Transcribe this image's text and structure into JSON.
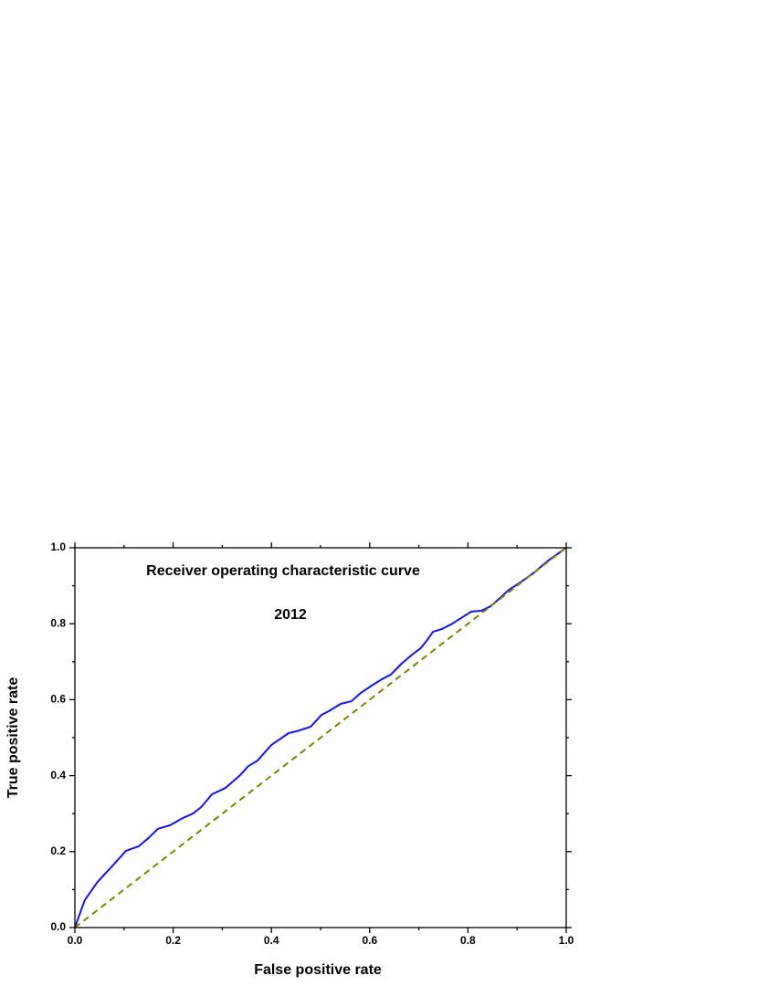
{
  "chart_data": {
    "type": "line",
    "title": "Receiver operating characteristic curve",
    "subtitle": "2012",
    "x_label": "False positive rate",
    "y_label": "True positive rate",
    "xlim": [
      0,
      1
    ],
    "ylim": [
      0,
      1
    ],
    "xticks": [
      {
        "value": 0,
        "label": "0.0"
      },
      {
        "value": 0.2,
        "label": "0.2"
      },
      {
        "value": 0.4,
        "label": "0.4"
      },
      {
        "value": 0.6,
        "label": "0.6"
      },
      {
        "value": 0.8,
        "label": "0.8"
      },
      {
        "value": 1,
        "label": "1.0"
      }
    ],
    "yticks": [
      {
        "value": 0,
        "label": "0.0"
      },
      {
        "value": 0.2,
        "label": "0.2"
      },
      {
        "value": 0.4,
        "label": "0.4"
      },
      {
        "value": 0.6,
        "label": "0.6"
      },
      {
        "value": 0.8,
        "label": "0.8"
      },
      {
        "value": 1,
        "label": "1.0"
      }
    ],
    "grid": false,
    "series": [
      {
        "color": "#1414e6",
        "dashed": false,
        "x": [
          0,
          0.02,
          0.046,
          0.074,
          0.104,
          0.13,
          0.15,
          0.169,
          0.193,
          0.219,
          0.24,
          0.257,
          0.279,
          0.307,
          0.336,
          0.353,
          0.372,
          0.387,
          0.4,
          0.416,
          0.435,
          0.457,
          0.48,
          0.502,
          0.517,
          0.541,
          0.563,
          0.582,
          0.604,
          0.625,
          0.643,
          0.665,
          0.684,
          0.704,
          0.717,
          0.729,
          0.747,
          0.768,
          0.786,
          0.807,
          0.827,
          0.846,
          0.861,
          0.883,
          0.907,
          0.935,
          0.963,
          1
        ],
        "values": [
          0,
          0.072,
          0.12,
          0.159,
          0.202,
          0.214,
          0.236,
          0.26,
          0.269,
          0.288,
          0.3,
          0.317,
          0.351,
          0.368,
          0.401,
          0.425,
          0.44,
          0.462,
          0.481,
          0.495,
          0.512,
          0.519,
          0.529,
          0.56,
          0.57,
          0.589,
          0.596,
          0.618,
          0.637,
          0.654,
          0.666,
          0.695,
          0.716,
          0.736,
          0.757,
          0.779,
          0.786,
          0.8,
          0.815,
          0.832,
          0.834,
          0.846,
          0.863,
          0.889,
          0.909,
          0.935,
          0.966,
          1
        ]
      },
      {
        "color": "#808000",
        "dashed": true,
        "x": [
          0,
          1
        ],
        "values": [
          0,
          1
        ]
      }
    ]
  }
}
